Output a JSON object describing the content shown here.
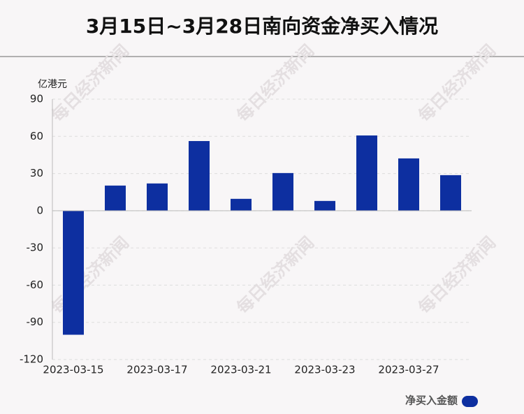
{
  "chart_data": {
    "type": "bar",
    "title": "3月15日~3月28日南向资金净买入情况",
    "y_label": "亿港元",
    "categories": [
      "2023-03-15",
      null,
      "2023-03-17",
      null,
      "2023-03-21",
      null,
      "2023-03-23",
      null,
      "2023-03-27",
      null
    ],
    "series": [
      {
        "name": "净买入金额",
        "color": "#0d2fa0",
        "values": [
          -100,
          20.3,
          22,
          56.2,
          9.6,
          30.4,
          7.9,
          60.7,
          42.2,
          28.7
        ]
      }
    ],
    "ylim": [
      -120,
      90
    ],
    "yticks": [
      -120,
      -90,
      -60,
      -30,
      0,
      30,
      60,
      90
    ],
    "grid": true,
    "legend": "bottom-right",
    "watermark": "每日经济新闻"
  }
}
